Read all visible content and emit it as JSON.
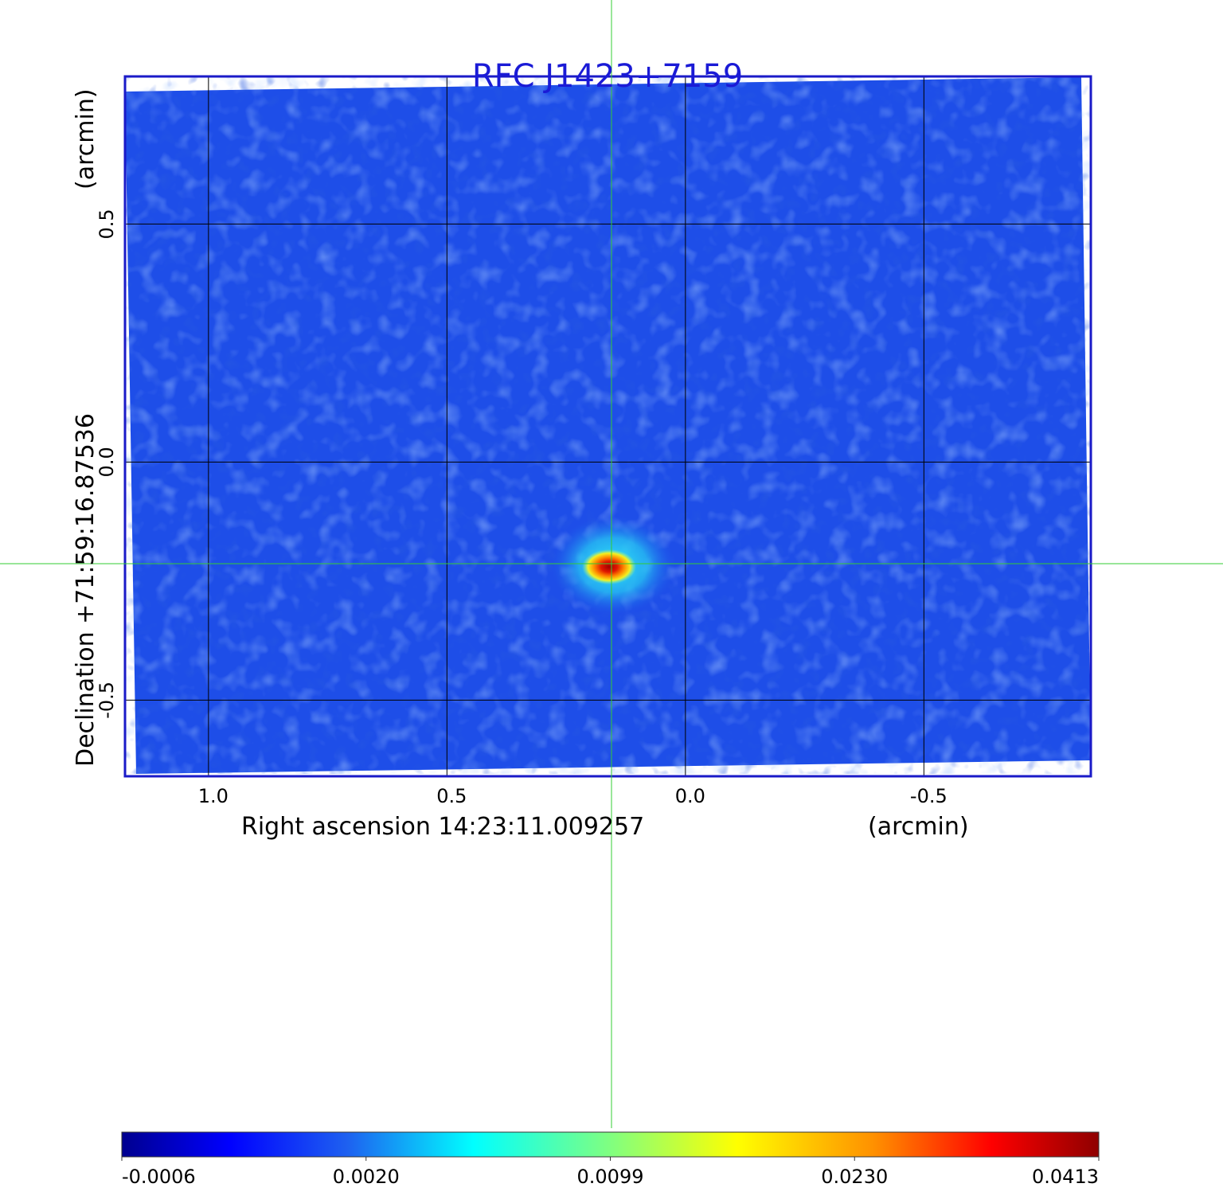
{
  "chart_data": {
    "type": "heatmap",
    "title": "RFC J1423+7159",
    "xlabel": "Right ascension  14:23:11.009257",
    "xunit": "(arcmin)",
    "ylabel": "Declination  +71:59:16.87536",
    "yunit": "(arcmin)",
    "x_ticks": [
      1.0,
      0.5,
      0.0,
      -0.5
    ],
    "x_tick_labels": [
      "1.0",
      "0.5",
      "0.0",
      "-0.5"
    ],
    "y_ticks": [
      0.5,
      0.0,
      -0.5
    ],
    "y_tick_labels": [
      "0.5",
      "0.0",
      "-0.5"
    ],
    "xlim": [
      1.175,
      -0.85
    ],
    "ylim": [
      -0.66,
      0.81
    ],
    "grid": true,
    "x_reversed": true,
    "crosshair": {
      "x": 0.155,
      "y": -0.215
    },
    "source": {
      "x": 0.16,
      "y": -0.22,
      "peak": 0.0413
    },
    "colorbar": {
      "tick_labels": [
        "-0.0006",
        "0.0020",
        "0.0099",
        "0.0230",
        "0.0413"
      ],
      "min": -0.0006,
      "max": 0.0413,
      "colormap": "jet"
    },
    "colors": {
      "title": "#1a1ad6",
      "frame": "#1a1ac8",
      "grid": "#000000",
      "crosshair": "#33cc33",
      "background_field": "#1e4ee8"
    }
  }
}
